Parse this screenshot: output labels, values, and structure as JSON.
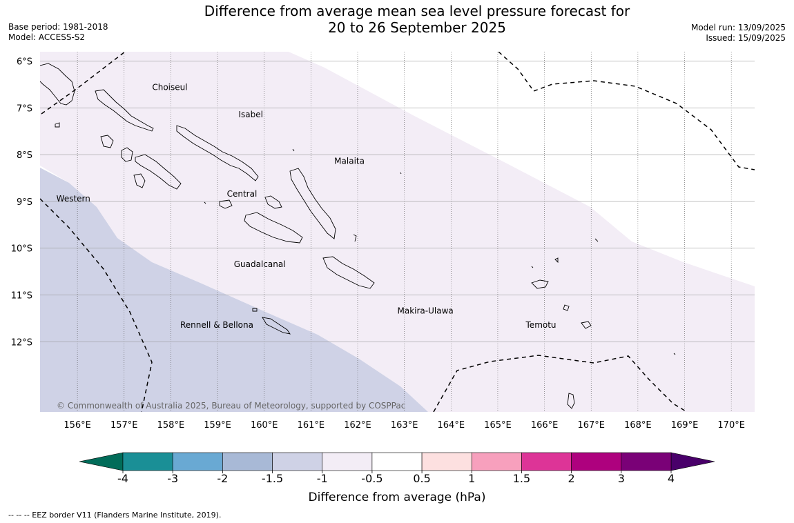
{
  "title": "Difference from average mean sea level pressure forecast for\n20 to 26 September 2025",
  "meta_left": {
    "base_period": "Base period: 1981-2018",
    "model": "Model: ACCESS-S2"
  },
  "meta_right": {
    "model_run": "Model run: 13/09/2025",
    "issued": "Issued: 15/09/2025"
  },
  "copyright": "© Commonwealth of Australia 2025, Bureau of Meteorology, supported by COSPPac",
  "map": {
    "lon_range": [
      155.2,
      170.5
    ],
    "lat_range": [
      -13.5,
      -5.8
    ],
    "lon_ticks": [
      "156°E",
      "157°E",
      "158°E",
      "159°E",
      "160°E",
      "161°E",
      "162°E",
      "163°E",
      "164°E",
      "165°E",
      "166°E",
      "167°E",
      "168°E",
      "169°E",
      "170°E"
    ],
    "lat_ticks": [
      "6°S",
      "7°S",
      "8°S",
      "9°S",
      "10°S",
      "11°S",
      "12°S"
    ],
    "province_labels": [
      {
        "name": "Choiseul",
        "lon": 157.6,
        "lat": -6.62
      },
      {
        "name": "Isabel",
        "lon": 159.45,
        "lat": -7.2
      },
      {
        "name": "Malaita",
        "lon": 161.5,
        "lat": -8.2
      },
      {
        "name": "Central",
        "lon": 159.2,
        "lat": -8.9
      },
      {
        "name": "Western",
        "lon": 155.55,
        "lat": -9.0
      },
      {
        "name": "Guadalcanal",
        "lon": 159.35,
        "lat": -10.4
      },
      {
        "name": "Makira-Ulawa",
        "lon": 162.85,
        "lat": -11.4
      },
      {
        "name": "Rennell & Bellona",
        "lon": 158.2,
        "lat": -11.7
      },
      {
        "name": "Temotu",
        "lon": 165.6,
        "lat": -11.7
      }
    ],
    "colors": {
      "minus_1_5_to_minus_1": "#cfd2e6",
      "minus_1_to_minus_0_5": "#f3edf6",
      "neutral": "#ffffff"
    }
  },
  "colorbar": {
    "label": "Difference from average (hPa)",
    "tick_labels": [
      "-4",
      "-3",
      "-2",
      "-1.5",
      "-1",
      "-0.5",
      "0.5",
      "1",
      "1.5",
      "2",
      "3",
      "4"
    ],
    "colors": [
      "#1a8f96",
      "#69a9d3",
      "#a8b9d6",
      "#cfd2e6",
      "#f3edf6",
      "#ffffff",
      "#fde0e0",
      "#f7a0bd",
      "#dd3497",
      "#ae017e",
      "#7a0177"
    ],
    "under_color": "#016c59",
    "over_color": "#49006a"
  },
  "footnote": "--  --  -- EEZ border V11 (Flanders Marine Institute, 2019)."
}
